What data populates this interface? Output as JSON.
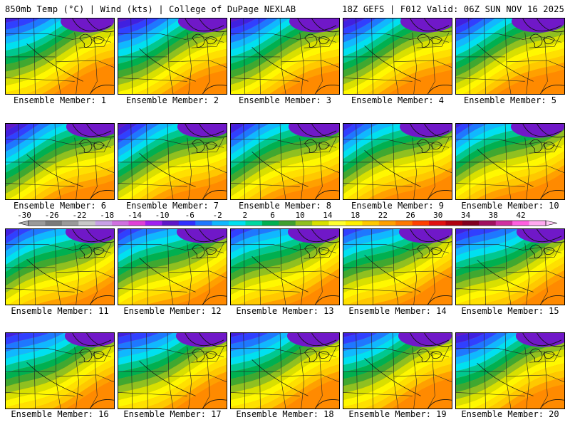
{
  "header": {
    "title": "850mb Temp (°C) | Wind (kts) | College of DuPage NEXLAB",
    "run_info": "18Z GEFS | F012 Valid: 06Z SUN NOV 16 2025"
  },
  "panels": [
    {
      "caption": "Ensemble Member: 1"
    },
    {
      "caption": "Ensemble Member: 2"
    },
    {
      "caption": "Ensemble Member: 3"
    },
    {
      "caption": "Ensemble Member: 4"
    },
    {
      "caption": "Ensemble Member: 5"
    },
    {
      "caption": "Ensemble Member: 6"
    },
    {
      "caption": "Ensemble Member: 7"
    },
    {
      "caption": "Ensemble Member: 8"
    },
    {
      "caption": "Ensemble Member: 9"
    },
    {
      "caption": "Ensemble Member: 10"
    },
    {
      "caption": "Ensemble Member: 11"
    },
    {
      "caption": "Ensemble Member: 12"
    },
    {
      "caption": "Ensemble Member: 13"
    },
    {
      "caption": "Ensemble Member: 14"
    },
    {
      "caption": "Ensemble Member: 15"
    },
    {
      "caption": "Ensemble Member: 16"
    },
    {
      "caption": "Ensemble Member: 17"
    },
    {
      "caption": "Ensemble Member: 18"
    },
    {
      "caption": "Ensemble Member: 19"
    },
    {
      "caption": "Ensemble Member: 20"
    }
  ],
  "colorbar": {
    "unit": "°C",
    "labels": [
      "-30",
      "-26",
      "-22",
      "-18",
      "-14",
      "-10",
      "-6",
      "-2",
      "2",
      "6",
      "10",
      "14",
      "18",
      "22",
      "26",
      "30",
      "34",
      "38",
      "42"
    ],
    "colors": [
      "#9a9a9a",
      "#7a7a7a",
      "#9a9a9a",
      "#c8c8c8",
      "#c8a0e6",
      "#d070e0",
      "#e040d8",
      "#a020f0",
      "#6018c8",
      "#3030ff",
      "#1e78ff",
      "#10b8ff",
      "#00e0f0",
      "#00d8a0",
      "#00b050",
      "#40a030",
      "#90c020",
      "#d8e000",
      "#ffff30",
      "#fff000",
      "#ffc800",
      "#ffa000",
      "#ff7800",
      "#ff4000",
      "#e01010",
      "#b00010",
      "#800020",
      "#a01060",
      "#d030a0",
      "#ff60e0",
      "#ffa8f0"
    ]
  }
}
